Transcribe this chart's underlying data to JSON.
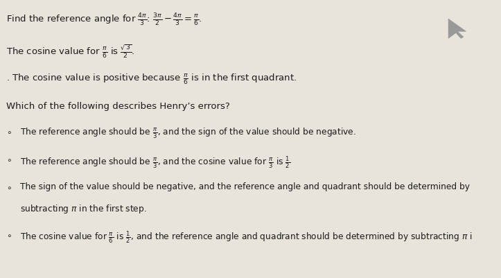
{
  "background_color": "#e8e4dc",
  "text_color": "#1a1a1a",
  "line1": "Find the reference angle for $\\frac{4\\pi}{3}$: $\\frac{3\\pi}{2} - \\frac{4\\pi}{3} = \\frac{\\pi}{6}$.",
  "line2": "The cosine value for $\\frac{\\pi}{6}$ is $\\frac{\\sqrt{3}}{2}$.",
  "line3": ". The cosine value is positive because $\\frac{\\pi}{6}$ is in the first quadrant.",
  "question": "Which of the following describes Henry’s errors?",
  "opt1": "The reference angle should be $\\frac{\\pi}{3}$, and the sign of the value should be negative.",
  "opt2": "The reference angle should be $\\frac{\\pi}{3}$, and the cosine value for $\\frac{\\pi}{3}$ is $\\frac{1}{2}$",
  "opt3a": "The sign of the value should be negative, and the reference angle and quadrant should be determined by",
  "opt3b": "subtracting $\\pi$ in the first step.",
  "opt4": "The cosine value for $\\frac{\\pi}{6}$ is $\\frac{1}{2}$, and the reference angle and quadrant should be determined by subtracting $\\pi$ i",
  "fs_main": 9.5,
  "fs_opt": 8.8,
  "cursor_color": "#999999"
}
